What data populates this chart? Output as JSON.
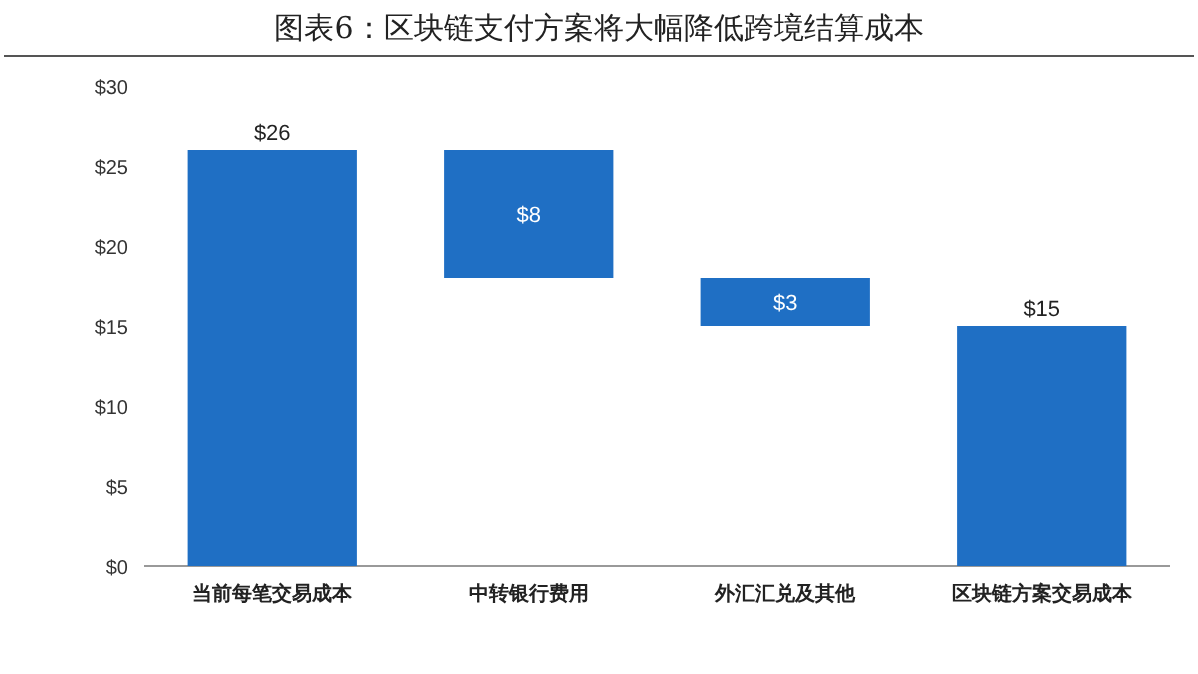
{
  "chart_data": {
    "type": "bar",
    "title": "图表6：区块链支付方案将大幅降低跨境结算成本",
    "categories": [
      "当前每笔交易成本",
      "中转银行费用",
      "外汇汇兑及其他",
      "区块链方案交易成本"
    ],
    "values": [
      26,
      8,
      3,
      15
    ],
    "base": [
      0,
      18,
      15,
      0
    ],
    "value_labels": [
      "$26",
      "$8",
      "$3",
      "$15"
    ],
    "color": "#1f6fc4",
    "ylim": [
      0,
      30
    ],
    "yticks": [
      {
        "value": 0,
        "label": "$0"
      },
      {
        "value": 5,
        "label": "$5"
      },
      {
        "value": 10,
        "label": "$10"
      },
      {
        "value": 15,
        "label": "$15"
      },
      {
        "value": 20,
        "label": "$20"
      },
      {
        "value": 25,
        "label": "$25"
      },
      {
        "value": 30,
        "label": "$30"
      }
    ],
    "grid": false
  }
}
